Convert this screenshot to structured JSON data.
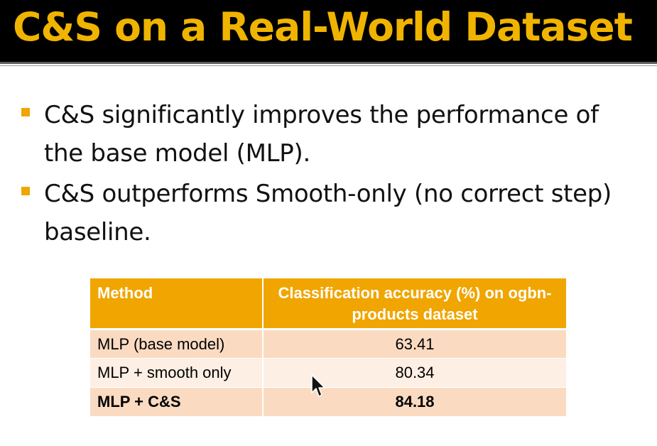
{
  "slide": {
    "title": "C&S on a Real-World Dataset",
    "bullets": [
      "C&S significantly improves the performance of the base model (MLP).",
      "C&S outperforms Smooth-only (no correct step) baseline."
    ]
  },
  "table": {
    "headers": [
      "Method",
      "Classification accuracy (%) on ogbn-products dataset"
    ],
    "rows": [
      {
        "method": "MLP (base model)",
        "accuracy": "63.41"
      },
      {
        "method": "MLP + smooth only",
        "accuracy": "80.34"
      },
      {
        "method": "MLP + C&S",
        "accuracy": "84.18"
      }
    ]
  },
  "colors": {
    "title": "#f0b400",
    "title_bar": "#000000",
    "accent": "#f0a500",
    "row_light": "#fdefe4",
    "row_dark": "#fadbc2"
  },
  "icons": {
    "bullet": "square-bullet-icon",
    "cursor": "mouse-pointer-icon"
  }
}
